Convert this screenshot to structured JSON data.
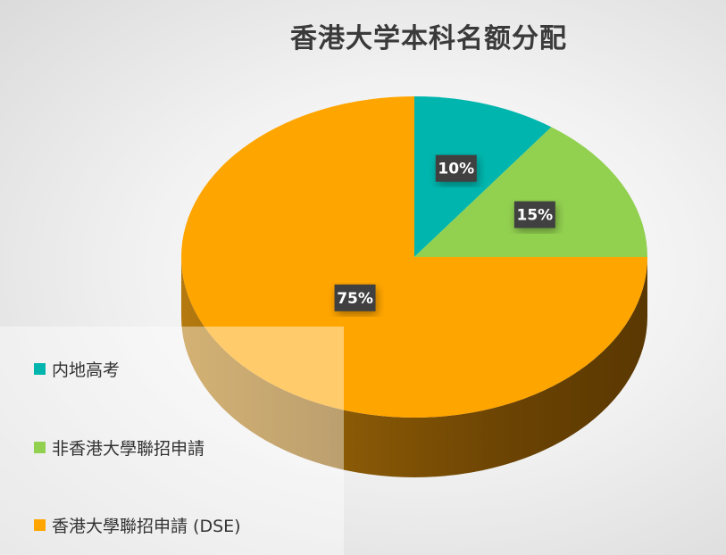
{
  "chart_data": {
    "type": "pie",
    "title": "香港大学本科名额分配",
    "slices": [
      {
        "name": "内地高考",
        "value": 10,
        "label": "10%",
        "color": "#00b5ad"
      },
      {
        "name": "非香港大學聯招申請",
        "value": 15,
        "label": "15%",
        "color": "#92d050"
      },
      {
        "name": "香港大學聯招申請 (DSE)",
        "value": 75,
        "label": "75%",
        "color": "#ffa500"
      }
    ],
    "legend_position": "bottom-left",
    "start_angle_deg": 0,
    "direction": "clockwise",
    "style": "3d"
  }
}
